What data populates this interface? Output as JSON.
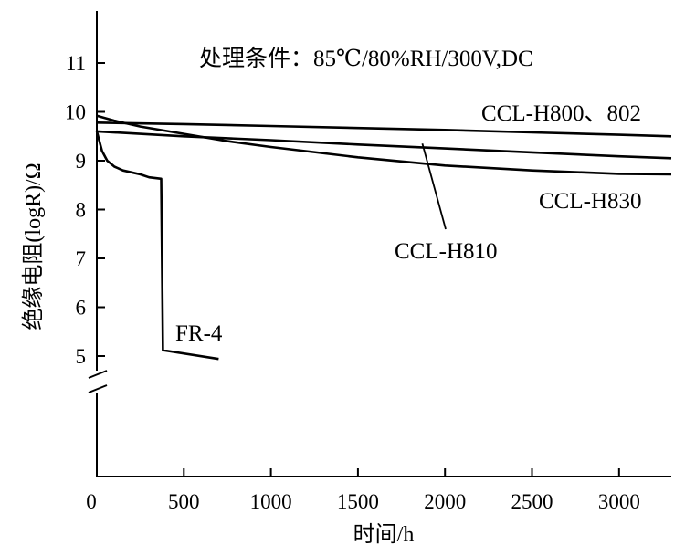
{
  "chart_data": {
    "type": "line",
    "title": "处理条件：85℃/80%RH/300V,DC",
    "xlabel": "时间/h",
    "ylabel": "绝缘电阻(logR)/Ω",
    "xlim": [
      0,
      3300
    ],
    "ylim": [
      5,
      12
    ],
    "axis_break": "y-axis break below 5",
    "grid": false,
    "x_ticks": [
      0,
      500,
      1000,
      1500,
      2000,
      2500,
      3000
    ],
    "x_tick_labels": [
      "0",
      "500",
      "1000",
      "1500",
      "2000",
      "2500",
      "3000"
    ],
    "y_ticks": [
      5,
      6,
      7,
      8,
      9,
      10,
      11
    ],
    "y_tick_labels": [
      "5",
      "6",
      "7",
      "8",
      "9",
      "10",
      "11"
    ],
    "series": [
      {
        "name": "CCL-H800、802",
        "x": [
          0,
          500,
          1000,
          1500,
          2000,
          2500,
          3000,
          3300
        ],
        "y": [
          9.78,
          9.75,
          9.71,
          9.67,
          9.63,
          9.58,
          9.53,
          9.5
        ]
      },
      {
        "name": "CCL-H810",
        "x": [
          0,
          500,
          1000,
          1500,
          2000,
          2500,
          3000,
          3300
        ],
        "y": [
          9.6,
          9.5,
          9.42,
          9.33,
          9.25,
          9.17,
          9.09,
          9.05
        ]
      },
      {
        "name": "CCL-H830",
        "x": [
          0,
          100,
          250,
          500,
          750,
          1000,
          1500,
          2000,
          2500,
          3000,
          3300
        ],
        "y": [
          9.92,
          9.82,
          9.7,
          9.55,
          9.4,
          9.28,
          9.07,
          8.9,
          8.8,
          8.73,
          8.72
        ]
      },
      {
        "name": "FR-4",
        "x": [
          0,
          30,
          60,
          100,
          150,
          200,
          250,
          300,
          370,
          380,
          700
        ],
        "y": [
          9.6,
          9.2,
          9.0,
          8.88,
          8.8,
          8.76,
          8.72,
          8.66,
          8.63,
          5.12,
          4.94
        ]
      }
    ],
    "annotations": [
      {
        "series": "CCL-H800、802",
        "text": "CCL-H800、802"
      },
      {
        "series": "CCL-H810",
        "text": "CCL-H810",
        "leader_line": true,
        "leader_from": [
          1870,
          9.35
        ]
      },
      {
        "series": "CCL-H830",
        "text": "CCL-H830"
      },
      {
        "series": "FR-4",
        "text": "FR-4"
      }
    ]
  }
}
